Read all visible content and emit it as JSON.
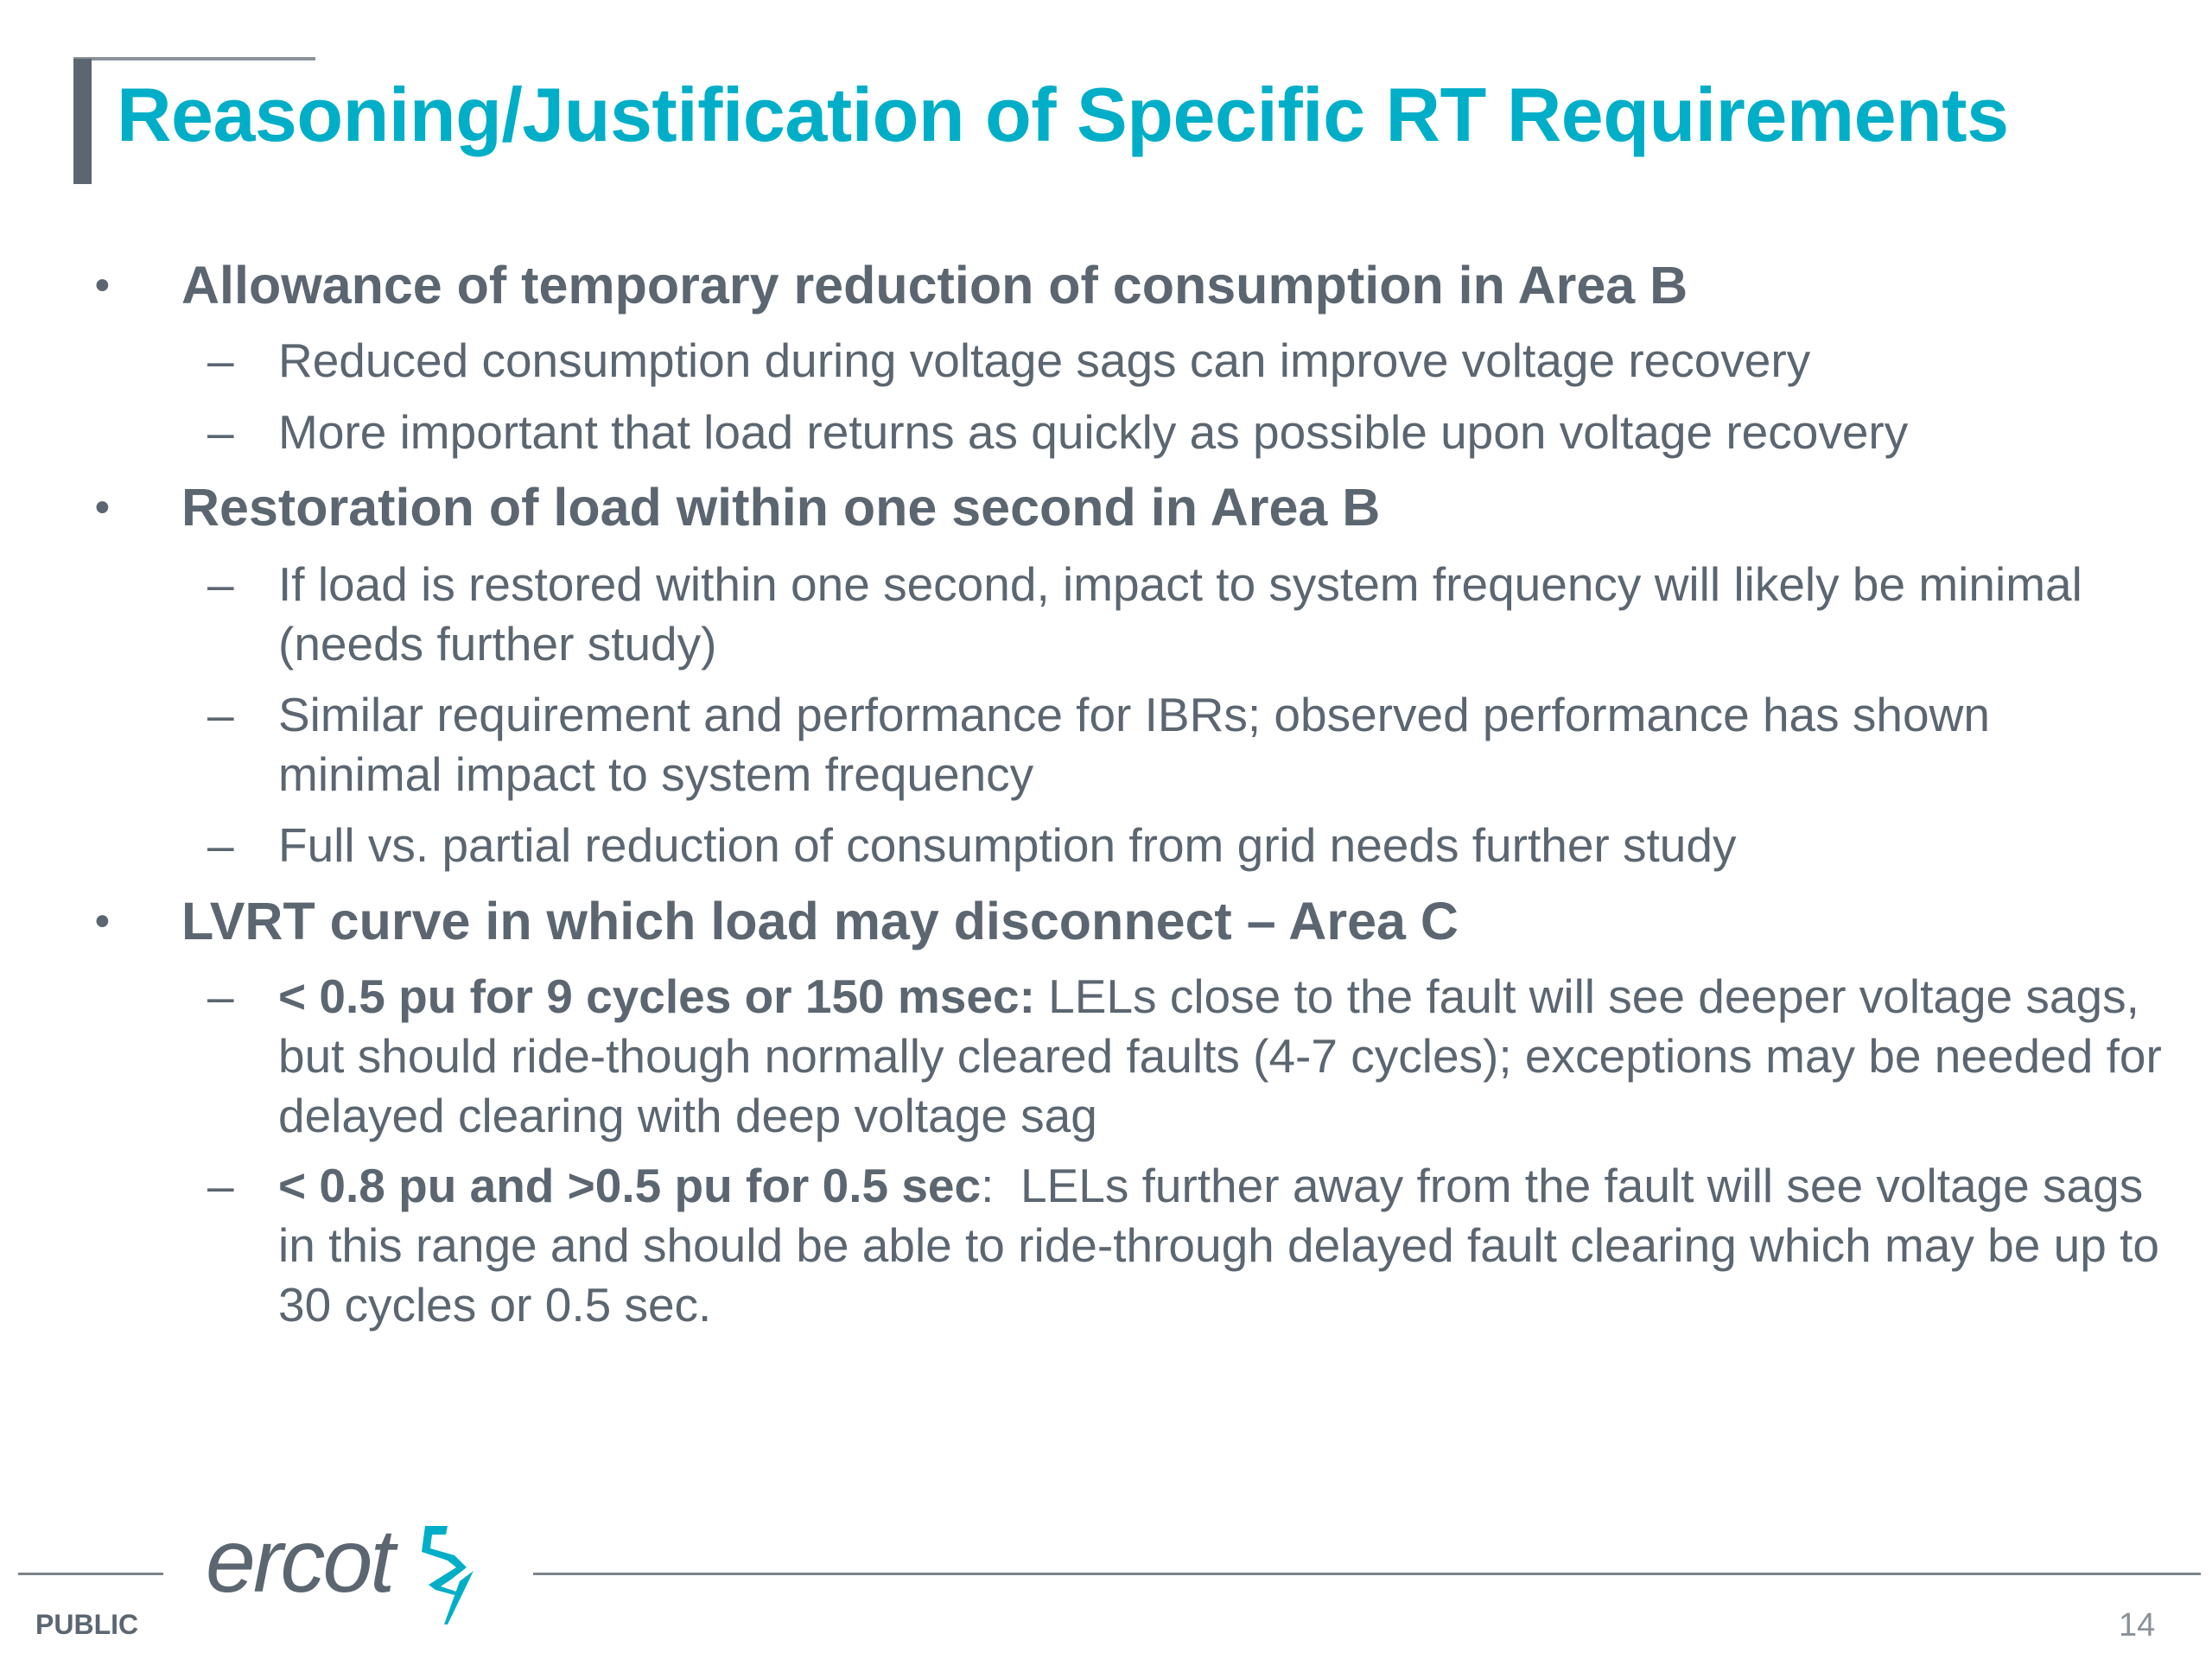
{
  "title": "Reasoning/Justification of Specific RT Requirements",
  "bullets": [
    {
      "text": "Allowance of temporary reduction of consumption in Area B",
      "subs": [
        {
          "bold": "",
          "text": "Reduced consumption during voltage sags can improve voltage recovery"
        },
        {
          "bold": "",
          "text": "More important that load returns as quickly as possible upon voltage recovery"
        }
      ]
    },
    {
      "text": "Restoration of load within one second in Area B",
      "subs": [
        {
          "bold": "",
          "text": "If load is restored within one second, impact to system frequency will likely be minimal (needs further study)"
        },
        {
          "bold": "",
          "text": "Similar requirement and performance for IBRs; observed performance has shown minimal impact to system frequency"
        },
        {
          "bold": "",
          "text": "Full vs. partial reduction of consumption from grid needs further study"
        }
      ]
    },
    {
      "text": "LVRT curve in which load may disconnect – Area C",
      "subs": [
        {
          "bold": "< 0.5 pu for 9 cycles or 150 msec:",
          "text": " LELs close to the fault will see deeper voltage sags, but should ride-though normally cleared faults (4-7 cycles); exceptions may be needed for delayed clearing with deep voltage sag"
        },
        {
          "bold": "< 0.8 pu and >0.5 pu for 0.5 sec",
          "text": ":  LELs further away from the fault will see voltage sags in this range and should be able to ride-through delayed fault clearing which may be up to 30 cycles or 0.5 sec."
        }
      ]
    }
  ],
  "bullet_glyph": "•",
  "dash_glyph": "–",
  "footer": {
    "logo": "ercot",
    "classification": "PUBLIC",
    "page_number": "14"
  },
  "colors": {
    "accent": "#00aec7",
    "text": "#5b6670"
  }
}
